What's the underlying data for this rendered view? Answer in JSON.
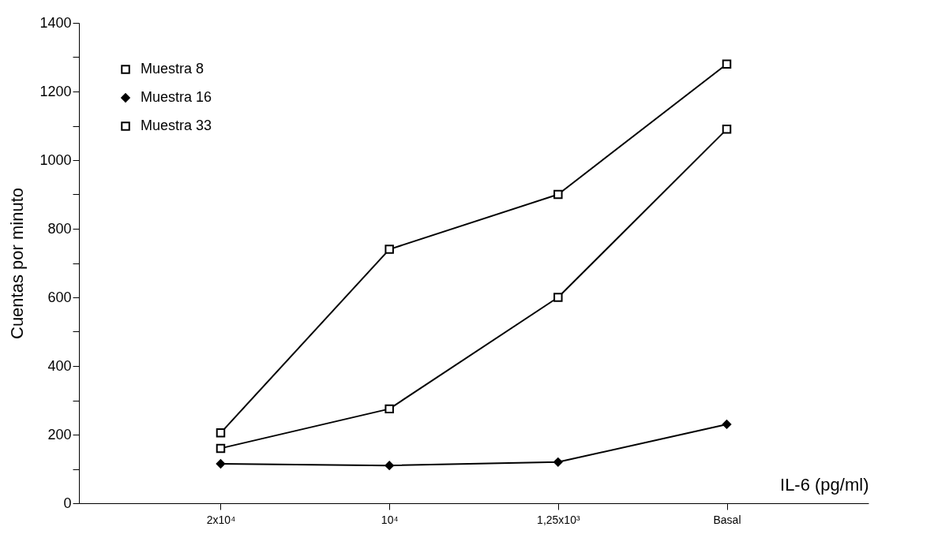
{
  "chart_data": {
    "type": "line",
    "xlabel": "IL-6 (pg/ml)",
    "ylabel": "Cuentas por minuto",
    "categories": [
      "2x10⁴",
      "10⁴",
      "1,25x10³",
      "Basal"
    ],
    "series": [
      {
        "name": "Muestra 8",
        "color": "#000000",
        "marker": "square",
        "values": [
          160,
          275,
          600,
          1090
        ]
      },
      {
        "name": "Muestra 16",
        "color": "#000000",
        "marker": "diamond",
        "values": [
          115,
          110,
          120,
          230
        ]
      },
      {
        "name": "Muestra 33",
        "color": "#000000",
        "marker": "square",
        "values": [
          205,
          740,
          900,
          1280
        ]
      }
    ],
    "ylim": [
      0,
      1400
    ],
    "yticks": [
      0,
      {
        "value": 100,
        "label": null
      },
      200,
      {
        "value": 300,
        "label": null
      },
      400,
      {
        "value": 500,
        "label": null
      },
      600,
      {
        "value": 700,
        "label": null
      },
      800,
      {
        "value": 900,
        "label": null
      },
      1000,
      {
        "value": 1100,
        "label": null
      },
      1200,
      {
        "value": 1300,
        "label": null
      },
      1400
    ],
    "grid": false,
    "legend": "top left"
  }
}
